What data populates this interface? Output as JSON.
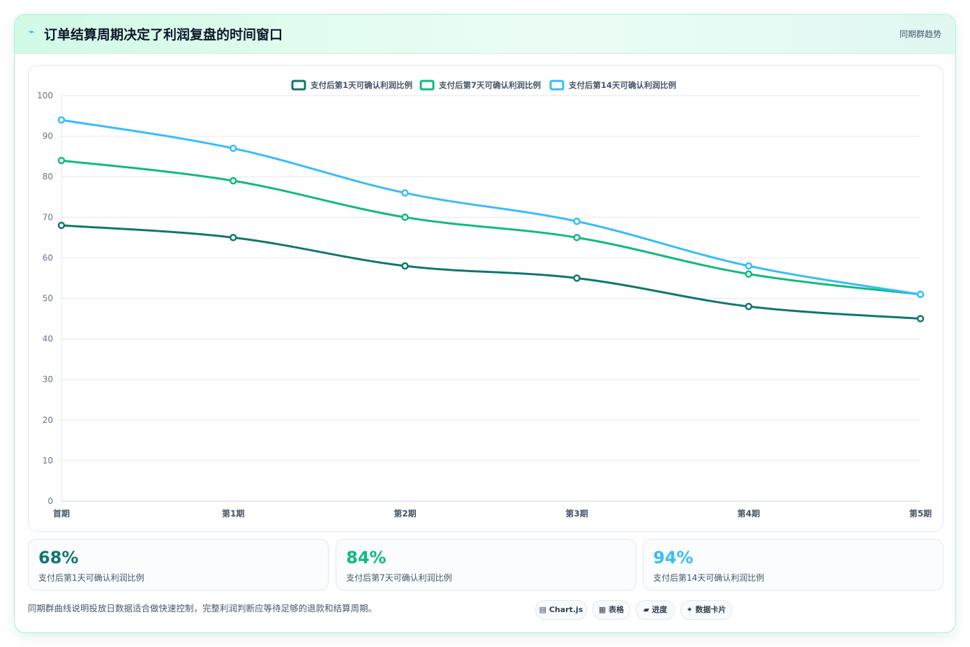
{
  "header": {
    "icon": "chart-icon",
    "title": "订单结算周期决定了利润复盘的时间窗口",
    "tag": "同期群趋势"
  },
  "chart_data": {
    "type": "line",
    "title": "",
    "xlabel": "",
    "ylabel": "",
    "categories": [
      "首期",
      "第1期",
      "第2期",
      "第3期",
      "第4期",
      "第5期"
    ],
    "ylim": [
      0,
      100
    ],
    "yticks": [
      0,
      10,
      20,
      30,
      40,
      50,
      60,
      70,
      80,
      90,
      100
    ],
    "grid": true,
    "legend_position": "top",
    "series": [
      {
        "name": "支付后第1天可确认利润比例",
        "color": "#0f766e",
        "values": [
          68,
          65,
          58,
          55,
          48,
          45
        ]
      },
      {
        "name": "支付后第7天可确认利润比例",
        "color": "#10b981",
        "values": [
          84,
          79,
          70,
          65,
          56,
          51
        ]
      },
      {
        "name": "支付后第14天可确认利润比例",
        "color": "#38bdf8",
        "values": [
          94,
          87,
          76,
          69,
          58,
          51
        ]
      }
    ]
  },
  "stats": [
    {
      "value": "68%",
      "label": "支付后第1天可确认利润比例",
      "color": "#0f766e"
    },
    {
      "value": "84%",
      "label": "支付后第7天可确认利润比例",
      "color": "#10b981"
    },
    {
      "value": "94%",
      "label": "支付后第14天可确认利润比例",
      "color": "#38bdf8"
    }
  ],
  "footnote": "同期群曲线说明投放日数据适合做快速控制，完整利润判断应等待足够的退款和结算周期。",
  "chips": [
    {
      "icon": "▤",
      "label": "Chart.js"
    },
    {
      "icon": "▦",
      "label": "表格"
    },
    {
      "icon": "▰",
      "label": "进度"
    },
    {
      "icon": "✦",
      "label": "数据卡片"
    }
  ]
}
